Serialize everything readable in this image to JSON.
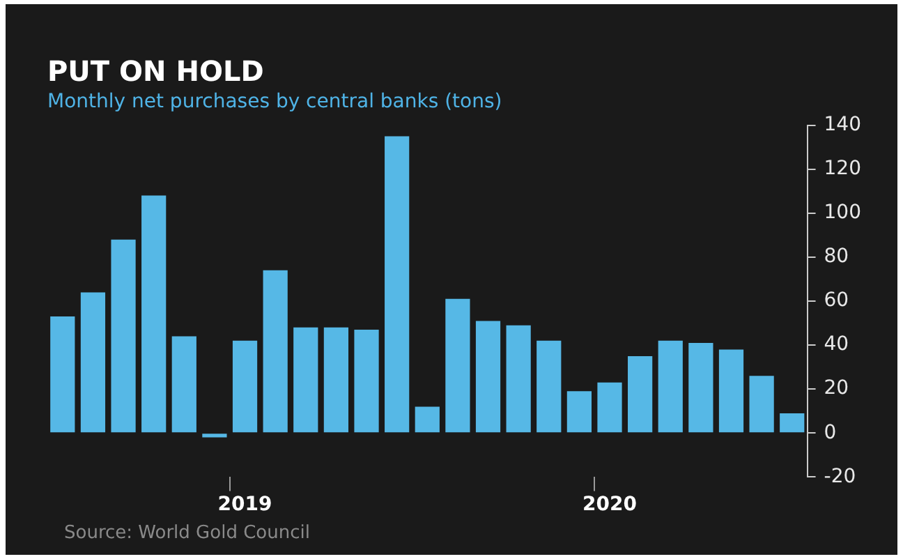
{
  "chart_data": {
    "type": "bar",
    "title": "PUT ON HOLD",
    "subtitle": "Monthly net purchases by central banks (tons)",
    "categories": [
      null,
      null,
      null,
      null,
      null,
      null,
      "2019",
      null,
      null,
      null,
      null,
      null,
      null,
      null,
      null,
      null,
      null,
      null,
      "2020",
      null,
      null,
      null,
      null,
      null,
      null
    ],
    "values": [
      53,
      64,
      88,
      108,
      44,
      -2,
      42,
      74,
      48,
      48,
      47,
      135,
      12,
      61,
      51,
      49,
      42,
      19,
      23,
      35,
      42,
      41,
      38,
      26,
      9
    ],
    "color": "#56b8e6",
    "ylim": [
      -20,
      140
    ],
    "yticks": [
      -20,
      0,
      20,
      40,
      60,
      80,
      100,
      120,
      140
    ],
    "grid": false,
    "legend": false,
    "annotations": [
      "Source: World Gold Council"
    ]
  }
}
